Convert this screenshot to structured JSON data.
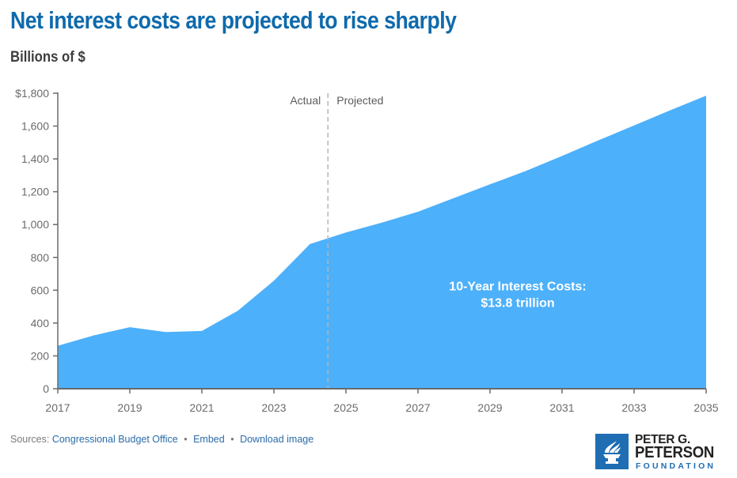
{
  "header": {
    "title": "Net interest costs are projected to rise sharply",
    "subtitle": "Billions of $"
  },
  "chart_data": {
    "type": "area",
    "title": "Net interest costs are projected to rise sharply",
    "subtitle": "Billions of $",
    "xlabel": "",
    "ylabel": "Billions of $",
    "x": [
      2017,
      2018,
      2019,
      2020,
      2021,
      2022,
      2023,
      2024,
      2025,
      2026,
      2027,
      2028,
      2029,
      2030,
      2031,
      2032,
      2033,
      2034,
      2035
    ],
    "series": [
      {
        "name": "Net interest costs",
        "values": [
          262,
          325,
          375,
          345,
          352,
          475,
          658,
          881,
          952,
          1012,
          1078,
          1162,
          1245,
          1327,
          1418,
          1512,
          1604,
          1696,
          1785
        ],
        "color": "#4db0fa"
      }
    ],
    "xlim": [
      2017,
      2035
    ],
    "ylim": [
      0,
      1800
    ],
    "x_ticks": [
      2017,
      2019,
      2021,
      2023,
      2025,
      2027,
      2029,
      2031,
      2033,
      2035
    ],
    "x_tick_labels": [
      "2017",
      "2019",
      "2021",
      "2023",
      "2025",
      "2027",
      "2029",
      "2031",
      "2033",
      "2035"
    ],
    "y_ticks": [
      0,
      200,
      400,
      600,
      800,
      1000,
      1200,
      1400,
      1600,
      1800
    ],
    "y_tick_labels": [
      "0",
      "200",
      "400",
      "600",
      "800",
      "1,000",
      "1,200",
      "1,400",
      "1,600",
      "$1,800"
    ],
    "grid": false,
    "legend": "none",
    "divider": {
      "x": 2024.5,
      "left_label": "Actual",
      "right_label": "Projected",
      "color": "#b5b5b5"
    },
    "annotations": [
      {
        "text_line1": "10-Year Interest Costs:",
        "text_line2": "$13.8 trillion",
        "x": 2031,
        "y": 560
      }
    ]
  },
  "footer": {
    "sources_label": "Sources:",
    "links": [
      "Congressional Budget Office",
      "Embed",
      "Download image"
    ],
    "separator": "•"
  },
  "logo": {
    "line1": "PETER G.",
    "line2": "PETERSON",
    "line3": "FOUNDATION"
  },
  "colors": {
    "title": "#0f6aac",
    "area": "#4db0fa",
    "axis": "#6b6b6b",
    "link": "#2b6ca8",
    "logo_blue": "#1f6db3"
  }
}
